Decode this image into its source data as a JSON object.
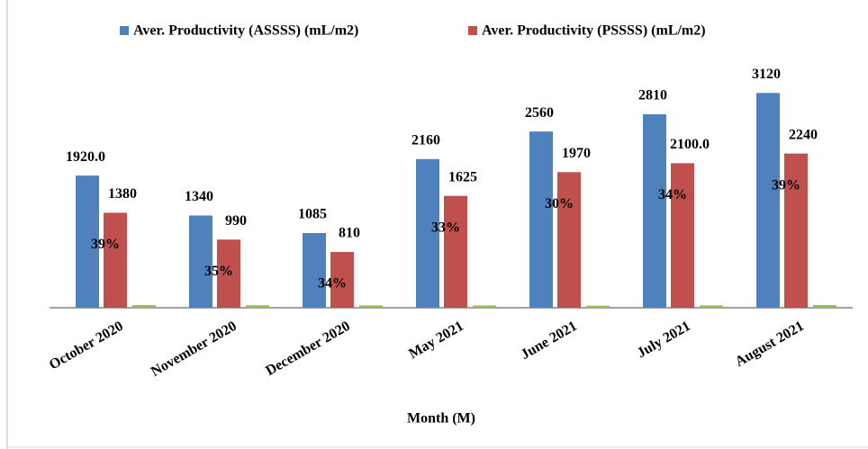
{
  "chart_data": {
    "type": "bar",
    "x_label": "Month  (M)",
    "categories": [
      "October 2020",
      "November 2020",
      "December 2020",
      "May 2021",
      "June 2021",
      "July 2021",
      "August 2021"
    ],
    "series": [
      {
        "name": "Aver. Productivity (ASSSS) (mL/m2)",
        "color": "#4f81bd",
        "values": [
          1920,
          1340,
          1085,
          2160,
          2560,
          2810,
          3120
        ],
        "value_labels": [
          "1920.0",
          "1340",
          "1085",
          "2160",
          "2560",
          "2810",
          "3120"
        ]
      },
      {
        "name": "Aver. Productivity (PSSSS) (mL/m2)",
        "color": "#c0504d",
        "values": [
          1380,
          990,
          810,
          1625,
          1970,
          2100,
          2240
        ],
        "value_labels": [
          "1380",
          "990",
          "810",
          "1625",
          "1970",
          "2100.0",
          "2240"
        ]
      },
      {
        "color": "#9bbb59",
        "values": [
          39,
          35,
          34,
          33,
          30,
          34,
          39
        ],
        "value_labels": [
          "39%",
          "35%",
          "34%",
          "33%",
          "30%",
          "34%",
          "39%"
        ]
      }
    ],
    "ylim": [
      0,
      4000
    ],
    "legend": "top"
  }
}
